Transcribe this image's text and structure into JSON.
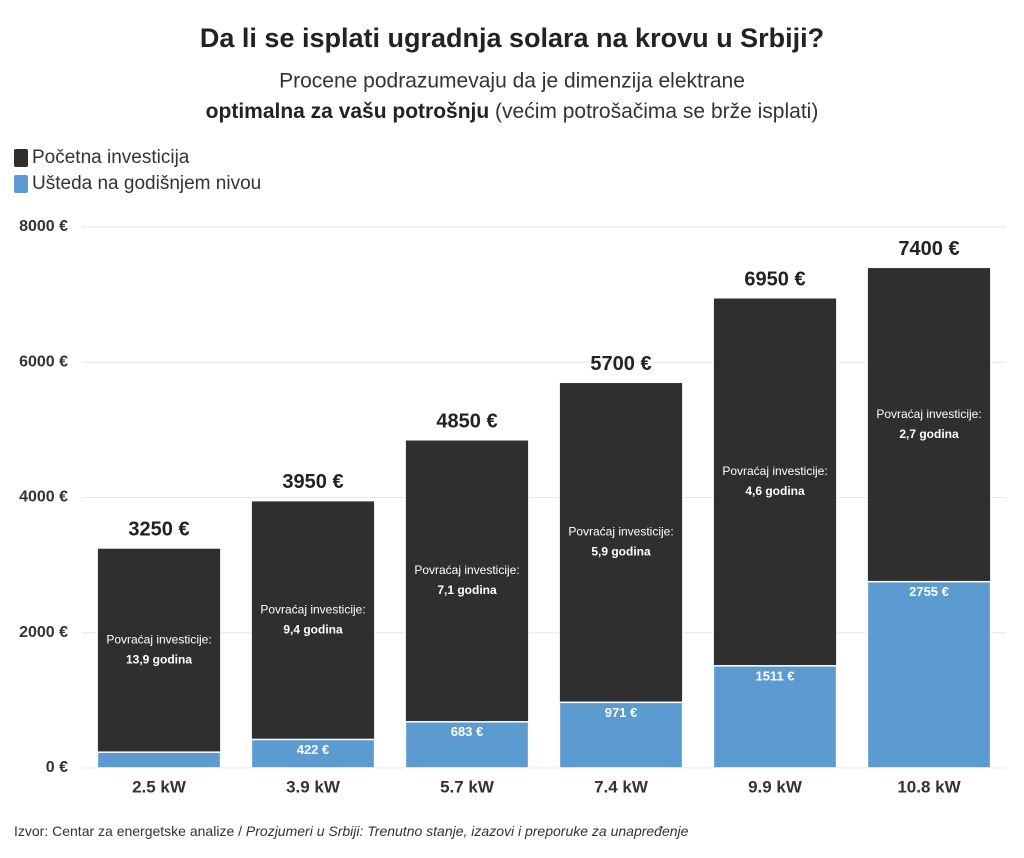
{
  "chart_data": {
    "type": "bar",
    "title": "Da li se isplati ugradnja solara na krovu u Srbiji?",
    "subtitle": [
      "Procene podrazumevaju da je dimenzija elektrane",
      "optimalna za vašu potrošnju",
      " (većim potrošačima se brže isplati)"
    ],
    "source": [
      "Izvor: Centar za energetske analize / ",
      "Prozjumeri u Srbiji: Trenutno stanje, izazovi i preporuke za unapređenje"
    ],
    "categories": [
      "2.5 kW",
      "3.9 kW",
      "5.7 kW",
      "7.4 kW",
      "9.9 kW",
      "10.8 kW"
    ],
    "series": [
      {
        "name": "Početna investicija",
        "color": "#2f2f2f",
        "values": [
          3250,
          3950,
          4850,
          5700,
          6950,
          7400
        ],
        "value_labels": [
          "3250 €",
          "3950 €",
          "4850 €",
          "5700 €",
          "6950 €",
          "7400 €"
        ]
      },
      {
        "name": "Ušteda na godišnjem nivou",
        "color": "#5b9bd0",
        "values": [
          234,
          422,
          683,
          971,
          1511,
          2755
        ],
        "value_labels": [
          null,
          "422 €",
          "683 €",
          "971 €",
          "1511 €",
          "2755 €"
        ]
      }
    ],
    "annotations": [
      {
        "label": "Povraćaj investicije:",
        "value": "13,9 godina"
      },
      {
        "label": "Povraćaj investicije:",
        "value": "9,4 godina"
      },
      {
        "label": "Povraćaj investicije:",
        "value": "7,1 godina"
      },
      {
        "label": "Povraćaj investicije:",
        "value": "5,9 godina"
      },
      {
        "label": "Povraćaj investicije:",
        "value": "4,6 godina"
      },
      {
        "label": "Povraćaj investicije:",
        "value": "2,7 godina"
      }
    ],
    "ylim": [
      0,
      8000
    ],
    "yticks": [
      {
        "value": 0,
        "label": "0 €"
      },
      {
        "value": 2000,
        "label": "2000 €"
      },
      {
        "value": 4000,
        "label": "4000 €"
      },
      {
        "value": 6000,
        "label": "6000 €"
      },
      {
        "value": 8000,
        "label": "8000 €"
      }
    ],
    "grid": true,
    "legend": "top-left"
  }
}
